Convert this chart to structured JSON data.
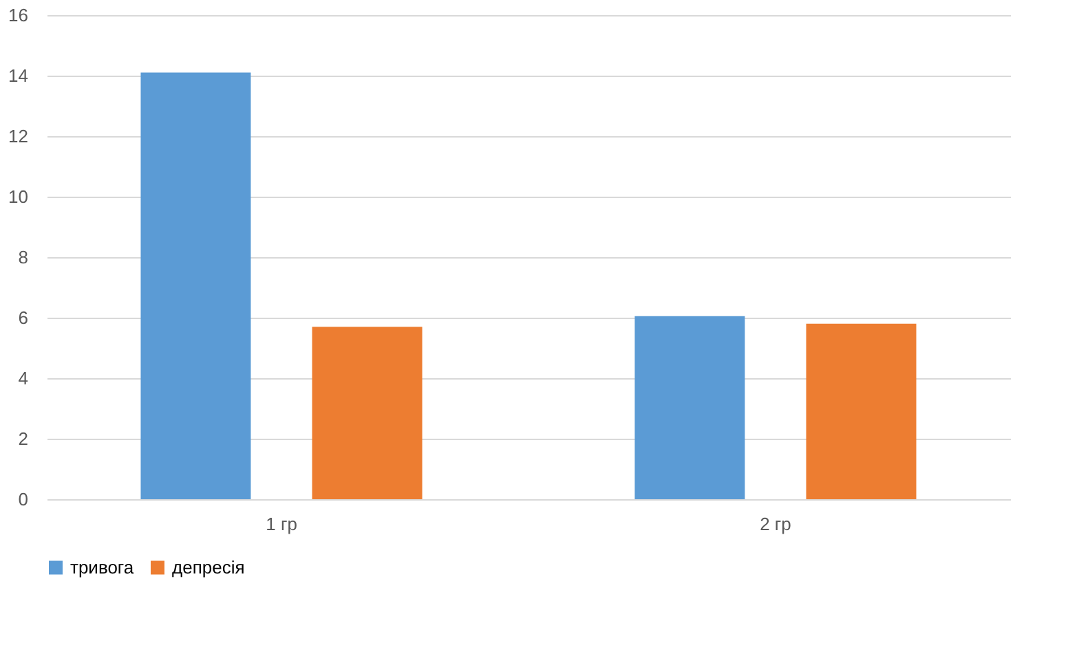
{
  "chart_data": {
    "type": "bar",
    "categories": [
      "1 гр",
      "2 гр"
    ],
    "series": [
      {
        "name": "тривога",
        "color": "#5b9bd5",
        "values": [
          14.1,
          6.05
        ]
      },
      {
        "name": "депресія",
        "color": "#ed7d31",
        "values": [
          5.7,
          5.8
        ]
      }
    ],
    "ylim": [
      0,
      16
    ],
    "yticks": [
      0,
      2,
      4,
      6,
      8,
      10,
      12,
      14,
      16
    ],
    "grid": "y",
    "legend": "bottom"
  }
}
